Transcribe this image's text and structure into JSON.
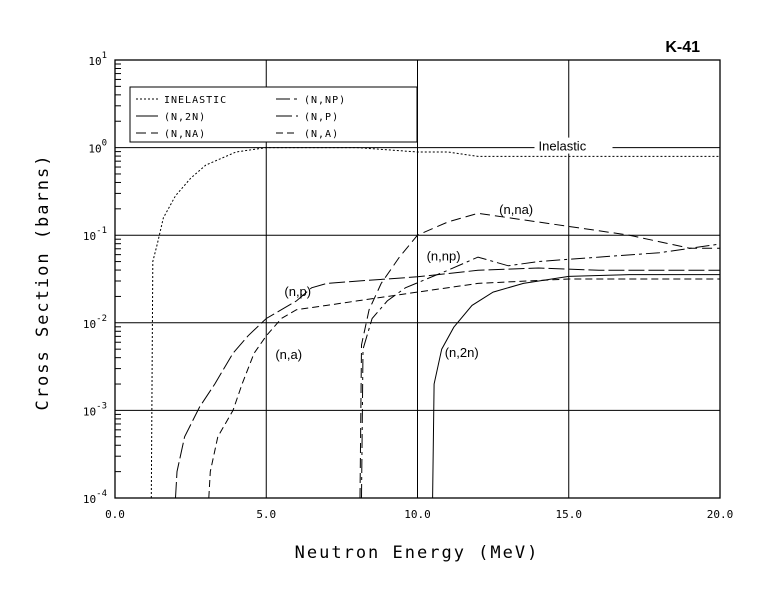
{
  "chart_data": {
    "type": "line",
    "title": "K-41",
    "xlabel": "Neutron Energy (MeV)",
    "ylabel": "Cross Section (barns)",
    "xlim": [
      0,
      20
    ],
    "ylim_log10": [
      -4,
      1
    ],
    "y_scale": "log",
    "grid": true,
    "x_ticks": [
      "0.0",
      "5.0",
      "10.0",
      "15.0",
      "20.0"
    ],
    "y_ticks": [
      {
        "base": "10",
        "exp": "-4"
      },
      {
        "base": "10",
        "exp": "-3"
      },
      {
        "base": "10",
        "exp": "-2"
      },
      {
        "base": "10",
        "exp": "-1"
      },
      {
        "base": "10",
        "exp": "0"
      },
      {
        "base": "10",
        "exp": "1"
      }
    ],
    "legend_position": "top-left",
    "series": [
      {
        "name": "INELASTIC",
        "label": "Inelastic",
        "dash": "2,2",
        "points": [
          [
            1.2,
            0.0001
          ],
          [
            1.25,
            0.0501
          ],
          [
            1.4,
            0.0794
          ],
          [
            1.6,
            0.1585
          ],
          [
            2.0,
            0.2818
          ],
          [
            2.5,
            0.4467
          ],
          [
            3.0,
            0.631
          ],
          [
            4.0,
            0.8913
          ],
          [
            5.0,
            1.0
          ],
          [
            6.0,
            1.0
          ],
          [
            7.0,
            1.0
          ],
          [
            8.0,
            1.0
          ],
          [
            9.0,
            0.9441
          ],
          [
            10.0,
            0.8913
          ],
          [
            11.0,
            0.8913
          ],
          [
            12.0,
            0.7943
          ],
          [
            13.0,
            0.7943
          ],
          [
            15.0,
            0.7943
          ],
          [
            18.0,
            0.7943
          ],
          [
            20.0,
            0.7943
          ]
        ]
      },
      {
        "name": "(N,2N)",
        "label": "(n,2n)",
        "dash": "",
        "points": [
          [
            10.5,
            0.0001
          ],
          [
            10.55,
            0.002
          ],
          [
            10.8,
            0.005
          ],
          [
            11.2,
            0.0089
          ],
          [
            11.8,
            0.0158
          ],
          [
            12.5,
            0.0224
          ],
          [
            13.5,
            0.0282
          ],
          [
            15.0,
            0.0339
          ],
          [
            17.0,
            0.0355
          ],
          [
            20.0,
            0.0355
          ]
        ]
      },
      {
        "name": "(N,NA)",
        "label": "(n,na)",
        "dash": "10,5",
        "points": [
          [
            8.1,
            0.0001
          ],
          [
            8.15,
            0.0056
          ],
          [
            8.4,
            0.0141
          ],
          [
            8.8,
            0.0282
          ],
          [
            9.4,
            0.0562
          ],
          [
            10.0,
            0.1
          ],
          [
            11.0,
            0.1413
          ],
          [
            12.0,
            0.1778
          ],
          [
            13.0,
            0.1585
          ],
          [
            15.0,
            0.1259
          ],
          [
            17.0,
            0.1
          ],
          [
            19.0,
            0.0708
          ],
          [
            20.0,
            0.0708
          ]
        ]
      },
      {
        "name": "(N,NP)",
        "label": "(n,np)",
        "dash": "14,4,3,4",
        "points": [
          [
            8.15,
            0.0001
          ],
          [
            8.2,
            0.005
          ],
          [
            8.5,
            0.0112
          ],
          [
            9.0,
            0.0178
          ],
          [
            9.6,
            0.0251
          ],
          [
            10.3,
            0.0316
          ],
          [
            11.0,
            0.0398
          ],
          [
            12.0,
            0.0562
          ],
          [
            13.0,
            0.0447
          ],
          [
            14.0,
            0.0501
          ],
          [
            16.0,
            0.0562
          ],
          [
            18.0,
            0.0631
          ],
          [
            20.0,
            0.0794
          ]
        ]
      },
      {
        "name": "(N,P)",
        "label": "(n,p)",
        "dash": "16,4",
        "points": [
          [
            2.0,
            0.0001
          ],
          [
            2.05,
            0.0002
          ],
          [
            2.3,
            0.0005
          ],
          [
            2.8,
            0.0011
          ],
          [
            3.3,
            0.002
          ],
          [
            3.9,
            0.0045
          ],
          [
            4.4,
            0.0071
          ],
          [
            5.0,
            0.0112
          ],
          [
            5.5,
            0.0141
          ],
          [
            6.0,
            0.0178
          ],
          [
            6.5,
            0.0251
          ],
          [
            7.0,
            0.0282
          ],
          [
            8.0,
            0.0299
          ],
          [
            10.0,
            0.0335
          ],
          [
            12.0,
            0.0398
          ],
          [
            14.0,
            0.0422
          ],
          [
            16.0,
            0.0398
          ],
          [
            20.0,
            0.0398
          ]
        ]
      },
      {
        "name": "(N,A)",
        "label": "(n,a)",
        "dash": "7,4",
        "points": [
          [
            3.1,
            0.0001
          ],
          [
            3.15,
            0.0002
          ],
          [
            3.4,
            0.0005
          ],
          [
            3.9,
            0.001
          ],
          [
            4.2,
            0.002
          ],
          [
            4.6,
            0.0045
          ],
          [
            5.0,
            0.0071
          ],
          [
            5.5,
            0.0112
          ],
          [
            6.0,
            0.0141
          ],
          [
            7.0,
            0.0158
          ],
          [
            8.0,
            0.0178
          ],
          [
            10.0,
            0.0224
          ],
          [
            12.0,
            0.0282
          ],
          [
            15.0,
            0.0316
          ],
          [
            18.0,
            0.0316
          ],
          [
            20.0,
            0.0316
          ]
        ]
      }
    ],
    "annotations": [
      {
        "text": "Inelastic",
        "x": 14.0,
        "y": 1.0
      },
      {
        "text": "(n,na)",
        "x": 12.7,
        "y": 0.19
      },
      {
        "text": "(n,np)",
        "x": 10.3,
        "y": 0.056
      },
      {
        "text": "(n,p)",
        "x": 5.6,
        "y": 0.022
      },
      {
        "text": "(n,a)",
        "x": 5.3,
        "y": 0.0042
      },
      {
        "text": "(n,2n)",
        "x": 10.9,
        "y": 0.0044
      }
    ]
  }
}
